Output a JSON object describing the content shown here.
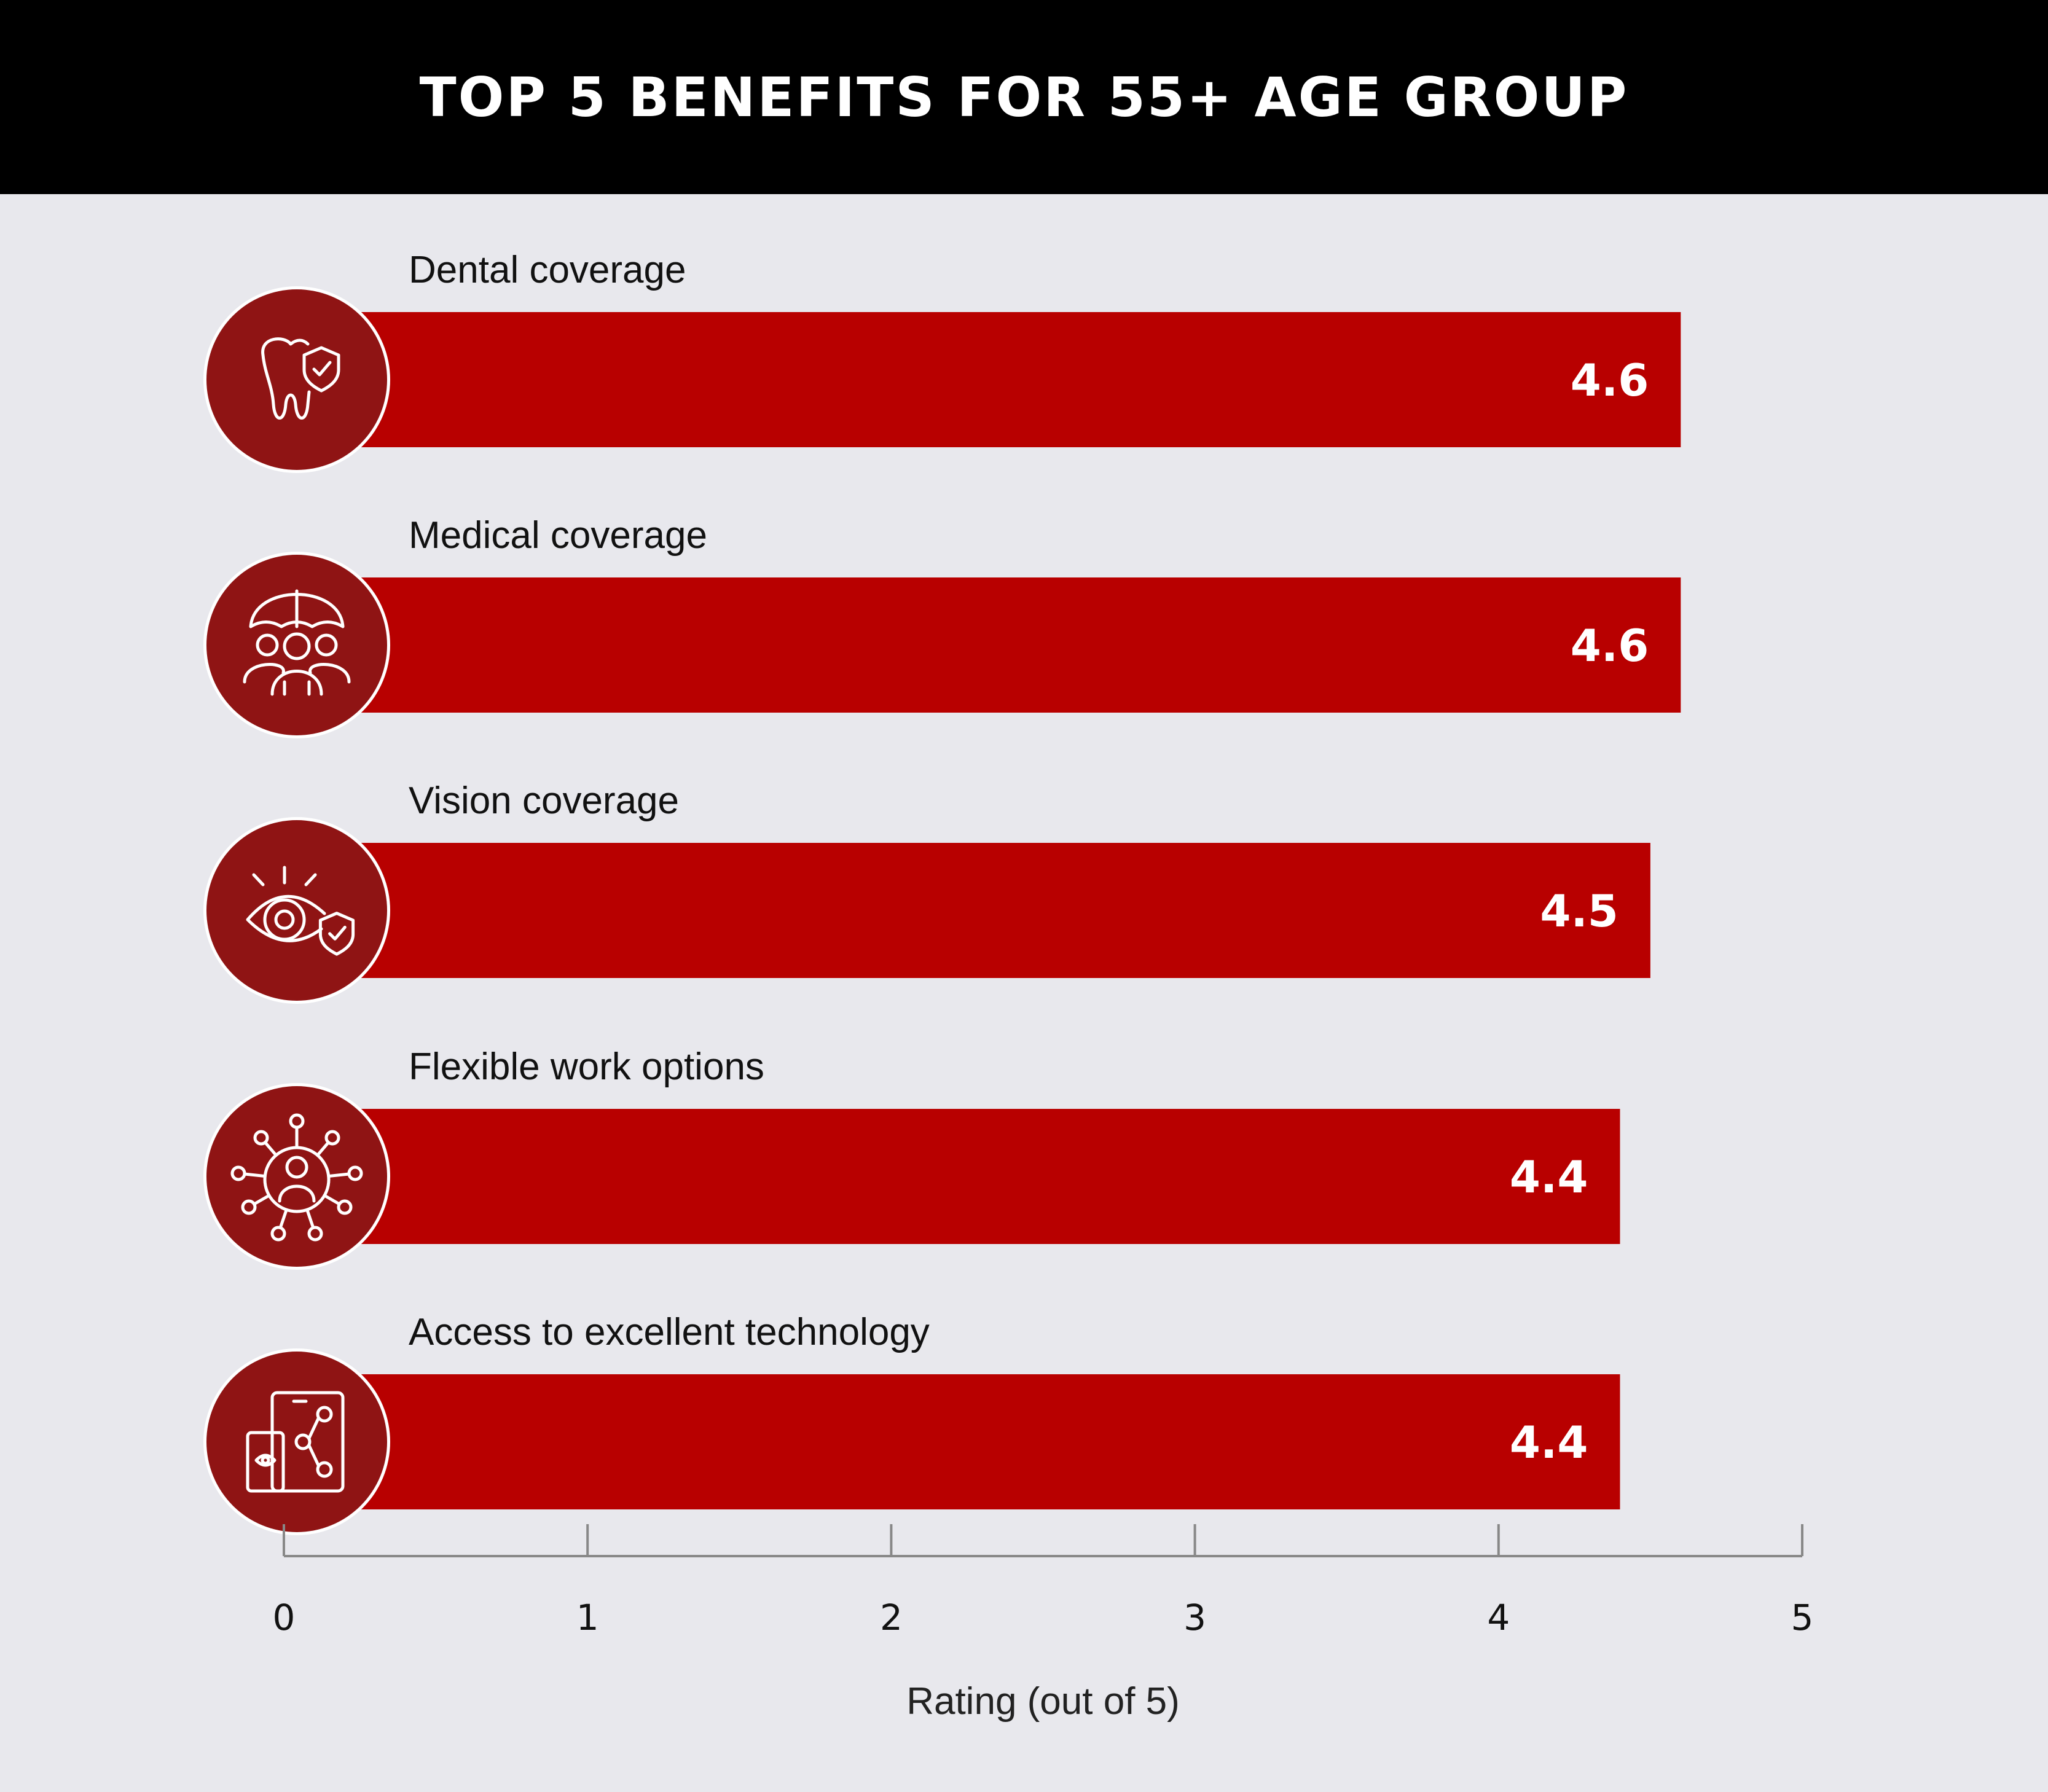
{
  "chart_data": {
    "type": "bar",
    "orientation": "horizontal",
    "title": "TOP 5 BENEFITS FOR 55+ AGE GROUP",
    "categories": [
      "Dental coverage",
      "Medical coverage",
      "Vision coverage",
      "Flexible work options",
      "Access to excellent technology"
    ],
    "values": [
      4.6,
      4.6,
      4.5,
      4.4,
      4.4
    ],
    "value_labels": [
      "4.6",
      "4.6",
      "4.5",
      "4.4",
      "4.4"
    ],
    "icons": [
      "tooth-shield-icon",
      "umbrella-people-icon",
      "eye-shield-icon",
      "network-person-icon",
      "devices-share-icon"
    ],
    "xlabel": "Rating (out of 5)",
    "xlim": [
      0,
      5
    ],
    "ticks": [
      "0",
      "1",
      "2",
      "3",
      "4",
      "5"
    ],
    "grid": false,
    "legend": "none",
    "colors": {
      "bar": "#b80000",
      "icon_circle": "#8f1414",
      "header": "#000000",
      "background": "#e8e8ed"
    }
  }
}
